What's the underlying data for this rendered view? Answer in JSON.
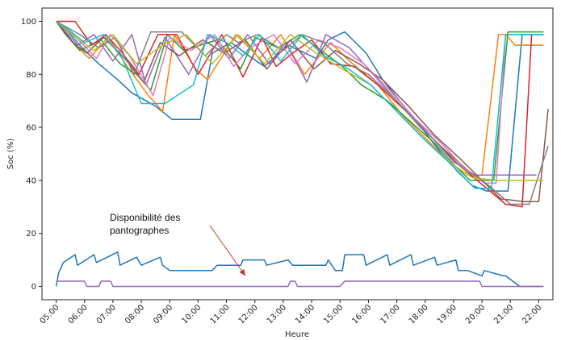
{
  "chart_data": {
    "type": "line",
    "title": "",
    "xlabel": "Heure",
    "ylabel": "Soc (%)",
    "xlim": [
      "04:30",
      "22:30"
    ],
    "ylim": [
      -5,
      105
    ],
    "x_ticks": [
      "05:00",
      "06:00",
      "07:00",
      "08:00",
      "09:00",
      "10:00",
      "11:00",
      "12:00",
      "13:00",
      "14:00",
      "15:00",
      "16:00",
      "17:00",
      "18:00",
      "19:00",
      "20:00",
      "21:00",
      "22:00"
    ],
    "y_ticks": [
      0,
      20,
      40,
      60,
      80,
      100
    ],
    "grid": false,
    "annotation": {
      "lines": [
        "Disponibilité des",
        "pantographes"
      ],
      "arrow_to": {
        "x": "11:40",
        "y": 4
      },
      "arrow_color": "#c0392b"
    },
    "series": [
      {
        "color": "#1f77b4",
        "x": [
          "05:00",
          "05:25",
          "05:55",
          "06:30",
          "07:10",
          "07:40",
          "08:30",
          "09:05",
          "10:05",
          "10:30",
          "11:10",
          "11:55",
          "12:20",
          "13:10",
          "14:10",
          "14:35",
          "15:10",
          "15:55",
          "16:30",
          "17:15",
          "18:00",
          "18:35",
          "19:10",
          "19:40",
          "20:10",
          "20:55",
          "21:25",
          "22:10"
        ],
        "y": [
          100,
          96,
          90,
          84,
          78,
          73,
          68,
          63,
          63,
          88,
          92,
          86,
          83,
          91,
          86,
          93,
          96,
          88,
          78,
          68,
          58,
          50,
          43,
          38,
          36,
          36,
          95,
          95
        ]
      },
      {
        "color": "#ff7f0e",
        "x": [
          "05:00",
          "05:30",
          "06:10",
          "06:50",
          "07:30",
          "08:15",
          "08:45",
          "09:10",
          "09:55",
          "10:20",
          "11:20",
          "12:10",
          "12:55",
          "13:45",
          "14:40",
          "15:20",
          "16:20",
          "17:10",
          "18:00",
          "18:50",
          "19:30",
          "20:00",
          "20:35",
          "20:50",
          "21:10",
          "22:10"
        ],
        "y": [
          100,
          93,
          86,
          94,
          83,
          72,
          66,
          95,
          82,
          78,
          95,
          86,
          95,
          80,
          92,
          85,
          76,
          65,
          56,
          47,
          42,
          42,
          95,
          95,
          91,
          91
        ]
      },
      {
        "color": "#2ca02c",
        "x": [
          "05:00",
          "05:20",
          "05:50",
          "06:35",
          "07:15",
          "07:50",
          "08:20",
          "08:55",
          "09:30",
          "10:40",
          "11:30",
          "12:00",
          "12:50",
          "13:35",
          "14:20",
          "15:05",
          "15:45",
          "16:40",
          "17:30",
          "18:20",
          "19:00",
          "19:35",
          "20:25",
          "20:55",
          "21:10",
          "22:10"
        ],
        "y": [
          100,
          95,
          89,
          93,
          84,
          80,
          74,
          95,
          89,
          93,
          82,
          94,
          90,
          95,
          89,
          83,
          76,
          70,
          62,
          54,
          46,
          40,
          40,
          96,
          96,
          96
        ]
      },
      {
        "color": "#d62728",
        "x": [
          "05:00",
          "05:40",
          "06:15",
          "06:45",
          "07:20",
          "07:55",
          "08:35",
          "09:15",
          "10:00",
          "10:50",
          "11:35",
          "12:15",
          "12:45",
          "13:20",
          "14:00",
          "14:40",
          "15:30",
          "16:20",
          "17:20",
          "18:15",
          "19:10",
          "19:50",
          "20:50",
          "21:25",
          "21:45",
          "22:10"
        ],
        "y": [
          100,
          100,
          91,
          95,
          88,
          80,
          95,
          95,
          80,
          95,
          79,
          94,
          83,
          88,
          93,
          84,
          83,
          76,
          66,
          56,
          46,
          40,
          31,
          30,
          95,
          95
        ]
      },
      {
        "color": "#9467bd",
        "x": [
          "05:00",
          "05:45",
          "06:20",
          "07:00",
          "07:40",
          "08:10",
          "08:50",
          "09:40",
          "10:25",
          "11:05",
          "11:45",
          "12:30",
          "13:05",
          "13:50",
          "14:30",
          "15:20",
          "16:10",
          "17:05",
          "18:05",
          "19:00",
          "19:45",
          "20:35",
          "21:20",
          "21:55"
        ],
        "y": [
          100,
          91,
          95,
          85,
          95,
          76,
          94,
          80,
          95,
          86,
          95,
          84,
          92,
          77,
          95,
          90,
          80,
          69,
          58,
          47,
          42,
          42,
          42,
          42
        ]
      },
      {
        "color": "#8c564b",
        "x": [
          "05:00",
          "05:35",
          "06:05",
          "06:40",
          "07:25",
          "08:05",
          "08:40",
          "09:20",
          "10:10",
          "10:55",
          "11:40",
          "12:25",
          "13:15",
          "14:05",
          "14:50",
          "15:40",
          "16:30",
          "17:25",
          "18:20",
          "19:15",
          "20:00",
          "20:40",
          "21:30",
          "22:00",
          "22:20"
        ],
        "y": [
          100,
          92,
          88,
          94,
          86,
          77,
          92,
          87,
          93,
          88,
          93,
          82,
          93,
          82,
          89,
          84,
          78,
          68,
          57,
          48,
          40,
          33,
          32,
          32,
          67
        ]
      },
      {
        "color": "#e377c2",
        "x": [
          "05:00",
          "05:30",
          "06:25",
          "06:55",
          "07:35",
          "08:25",
          "09:00",
          "09:45",
          "10:35",
          "11:15",
          "11:50",
          "12:40",
          "13:25",
          "14:15",
          "15:00",
          "15:50",
          "16:45",
          "17:40",
          "18:40",
          "19:25",
          "20:05",
          "20:30",
          "20:50",
          "22:10"
        ],
        "y": [
          100,
          96,
          86,
          95,
          87,
          72,
          94,
          89,
          95,
          83,
          90,
          95,
          84,
          93,
          90,
          84,
          74,
          63,
          53,
          44,
          39,
          39,
          95,
          95
        ]
      },
      {
        "color": "#7f7f7f",
        "x": [
          "05:00",
          "05:50",
          "06:30",
          "07:05",
          "07:45",
          "08:20",
          "09:25",
          "10:15",
          "11:00",
          "11:25",
          "12:05",
          "13:00",
          "13:40",
          "14:25",
          "15:15",
          "16:00",
          "16:55",
          "17:50",
          "18:45",
          "19:35",
          "20:15",
          "21:00",
          "21:40",
          "22:20"
        ],
        "y": [
          100,
          95,
          90,
          94,
          80,
          96,
          96,
          87,
          95,
          92,
          95,
          89,
          95,
          92,
          84,
          80,
          71,
          60,
          51,
          43,
          38,
          31,
          31,
          53
        ]
      },
      {
        "color": "#bcbd22",
        "x": [
          "05:00",
          "05:40",
          "06:20",
          "07:00",
          "07:50",
          "08:45",
          "09:35",
          "10:30",
          "11:25",
          "12:20",
          "13:15",
          "14:10",
          "15:05",
          "16:05",
          "17:00",
          "17:55",
          "18:50",
          "19:40",
          "20:30",
          "21:20",
          "22:10"
        ],
        "y": [
          100,
          94,
          89,
          95,
          84,
          91,
          95,
          84,
          95,
          84,
          95,
          88,
          82,
          76,
          66,
          56,
          47,
          41,
          40,
          40,
          40
        ]
      },
      {
        "color": "#17becf",
        "x": [
          "05:00",
          "05:25",
          "06:00",
          "06:40",
          "07:20",
          "08:00",
          "08:50",
          "09:50",
          "10:20",
          "11:00",
          "11:35",
          "12:10",
          "12:55",
          "13:40",
          "14:25",
          "15:10",
          "16:05",
          "17:00",
          "17:55",
          "18:55",
          "19:45",
          "20:20",
          "20:50",
          "22:10"
        ],
        "y": [
          100,
          97,
          92,
          95,
          86,
          69,
          69,
          76,
          95,
          92,
          87,
          95,
          85,
          95,
          87,
          83,
          76,
          66,
          56,
          46,
          37,
          37,
          95,
          95
        ]
      },
      {
        "color": "#1f77b4",
        "x": [
          "05:00",
          "05:05",
          "05:15",
          "05:40",
          "05:45",
          "06:20",
          "06:25",
          "07:10",
          "07:15",
          "07:50",
          "08:00",
          "08:40",
          "08:45",
          "09:00",
          "10:30",
          "10:40",
          "11:30",
          "11:35",
          "12:20",
          "12:25",
          "13:10",
          "13:20",
          "14:30",
          "14:35",
          "14:50",
          "15:05",
          "15:10",
          "15:50",
          "15:55",
          "16:40",
          "16:45",
          "17:30",
          "17:35",
          "18:20",
          "18:25",
          "19:05",
          "19:10",
          "19:30",
          "20:00",
          "20:05",
          "20:45",
          "20:50",
          "21:20",
          "22:10"
        ],
        "y": [
          0,
          5,
          9,
          12,
          8,
          12,
          9,
          13,
          8,
          11,
          8,
          11,
          8,
          6,
          6,
          8,
          8,
          10,
          10,
          8,
          10,
          8,
          8,
          10,
          6,
          6,
          12,
          12,
          8,
          12,
          8,
          12,
          8,
          11,
          8,
          10,
          6,
          6,
          4,
          6,
          4,
          4,
          0,
          0
        ]
      },
      {
        "color": "#9467bd",
        "x": [
          "05:00",
          "05:05",
          "06:00",
          "06:05",
          "06:30",
          "06:35",
          "06:55",
          "07:00",
          "07:15",
          "07:20",
          "13:10",
          "13:15",
          "13:25",
          "13:30",
          "15:00",
          "15:10",
          "19:55",
          "20:00",
          "22:10"
        ],
        "y": [
          2,
          2,
          2,
          0,
          0,
          2,
          2,
          0,
          0,
          0,
          0,
          2,
          2,
          0,
          0,
          2,
          2,
          0,
          0
        ]
      }
    ]
  }
}
